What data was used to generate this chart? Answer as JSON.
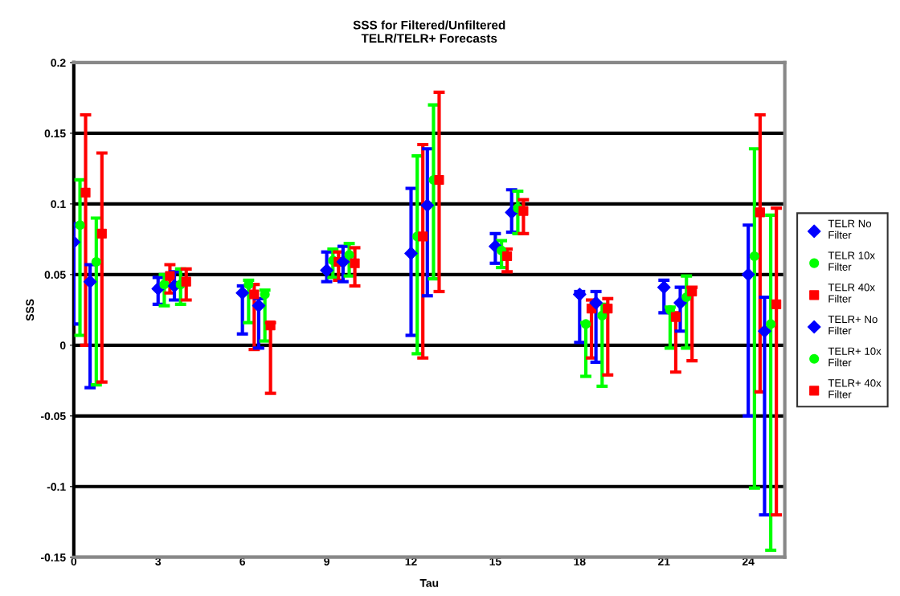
{
  "chart_data": {
    "type": "scatter",
    "title": "SSS for Filtered/Unfiltered\nTELR/TELR+ Forecasts",
    "xlabel": "Tau",
    "ylabel": "SSS",
    "xlim": [
      0,
      25.3
    ],
    "xticks": [
      0,
      3,
      6,
      9,
      12,
      15,
      18,
      21,
      24
    ],
    "ylim": [
      -0.15,
      0.2
    ],
    "yticks": [
      -0.15,
      -0.1,
      -0.05,
      0,
      0.05,
      0.1,
      0.15,
      0.2
    ],
    "grid": "y",
    "legend": "right",
    "series": [
      {
        "name": "TELR No\nFilter",
        "color": "#0000ff",
        "marker": "diamond",
        "x": [
          0,
          3,
          6,
          9,
          12,
          15,
          18,
          21,
          24
        ],
        "values": [
          0.073,
          0.04,
          0.037,
          0.053,
          0.065,
          0.07,
          0.036,
          0.041,
          0.05
        ],
        "errors": [
          [
            0.015,
            0.086
          ],
          [
            0.029,
            0.048
          ],
          [
            0.008,
            0.042
          ],
          [
            0.045,
            0.066
          ],
          [
            0.007,
            0.111
          ],
          [
            0.058,
            0.079
          ],
          [
            0.002,
            0.038
          ],
          [
            0.023,
            0.046
          ],
          [
            -0.05,
            0.085
          ]
        ]
      },
      {
        "name": "TELR 10x\nFilter",
        "color": "#00ff00",
        "marker": "circle",
        "x": [
          0.22,
          3.22,
          6.22,
          9.22,
          12.22,
          15.22,
          18.22,
          21.22,
          24.22
        ],
        "values": [
          0.085,
          0.043,
          0.043,
          0.06,
          0.077,
          0.067,
          0.015,
          0.025,
          0.063
        ],
        "errors": [
          [
            0.007,
            0.117
          ],
          [
            0.028,
            0.05
          ],
          [
            0.016,
            0.046
          ],
          [
            0.048,
            0.068
          ],
          [
            -0.006,
            0.134
          ],
          [
            0.055,
            0.074
          ],
          [
            -0.022,
            0.016
          ],
          [
            -0.002,
            0.027
          ],
          [
            -0.101,
            0.139
          ]
        ]
      },
      {
        "name": "TELR 40x\nFilter",
        "color": "#ff0000",
        "marker": "square",
        "x": [
          0.42,
          3.42,
          6.42,
          9.42,
          12.42,
          15.42,
          18.42,
          21.42,
          24.42
        ],
        "values": [
          0.108,
          0.049,
          0.036,
          0.059,
          0.077,
          0.063,
          0.026,
          0.02,
          0.094
        ],
        "errors": [
          [
            0.0,
            0.163
          ],
          [
            0.037,
            0.057
          ],
          [
            -0.003,
            0.043
          ],
          [
            0.046,
            0.066
          ],
          [
            -0.009,
            0.142
          ],
          [
            0.052,
            0.068
          ],
          [
            -0.009,
            0.032
          ],
          [
            -0.019,
            0.023
          ],
          [
            -0.033,
            0.163
          ]
        ]
      },
      {
        "name": "TELR+ No\nFilter",
        "color": "#0000ff",
        "marker": "diamond",
        "x": [
          0.58,
          3.58,
          6.58,
          9.58,
          12.58,
          15.58,
          18.58,
          21.58,
          24.58
        ],
        "values": [
          0.045,
          0.042,
          0.028,
          0.059,
          0.099,
          0.094,
          0.03,
          0.03,
          0.01
        ],
        "errors": [
          [
            -0.03,
            0.057
          ],
          [
            0.032,
            0.052
          ],
          [
            -0.002,
            0.033
          ],
          [
            0.045,
            0.07
          ],
          [
            0.035,
            0.139
          ],
          [
            0.08,
            0.11
          ],
          [
            -0.012,
            0.038
          ],
          [
            0.01,
            0.041
          ],
          [
            -0.12,
            0.034
          ]
        ]
      },
      {
        "name": "TELR+ 10x\nFilter",
        "color": "#00ff00",
        "marker": "circle",
        "x": [
          0.8,
          3.8,
          6.8,
          9.8,
          12.8,
          15.8,
          18.8,
          21.8,
          24.8
        ],
        "values": [
          0.059,
          0.043,
          0.036,
          0.064,
          0.117,
          0.097,
          0.021,
          0.034,
          0.015
        ],
        "errors": [
          [
            -0.028,
            0.09
          ],
          [
            0.029,
            0.054
          ],
          [
            0.003,
            0.039
          ],
          [
            0.049,
            0.072
          ],
          [
            0.047,
            0.17
          ],
          [
            0.079,
            0.109
          ],
          [
            -0.029,
            0.029
          ],
          [
            -0.002,
            0.049
          ],
          [
            -0.145,
            0.092
          ]
        ]
      },
      {
        "name": "TELR+ 40x\nFilter",
        "color": "#ff0000",
        "marker": "square",
        "x": [
          1.0,
          4.0,
          7.0,
          10.0,
          13.0,
          16.0,
          19.0,
          22.0,
          25.0
        ],
        "values": [
          0.079,
          0.045,
          0.014,
          0.058,
          0.117,
          0.095,
          0.026,
          0.038,
          0.029
        ],
        "errors": [
          [
            -0.026,
            0.136
          ],
          [
            0.032,
            0.054
          ],
          [
            -0.034,
            0.016
          ],
          [
            0.042,
            0.069
          ],
          [
            0.038,
            0.179
          ],
          [
            0.079,
            0.103
          ],
          [
            -0.021,
            0.033
          ],
          [
            -0.011,
            0.041
          ],
          [
            -0.12,
            0.097
          ]
        ]
      }
    ]
  }
}
